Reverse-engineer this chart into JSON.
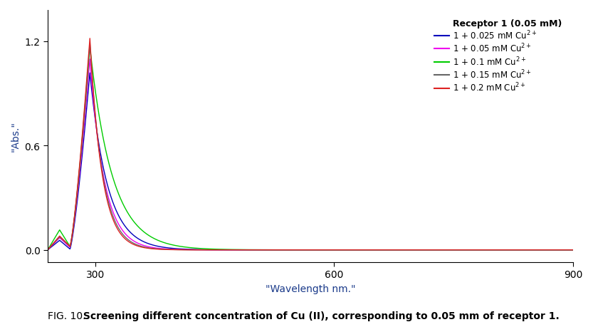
{
  "xlabel": "\"Wavelength nm.\"",
  "ylabel": "\"Abs.\"",
  "caption_prefix": "FIG. 10.",
  "caption_body": " Screening different concentration of Cu (II), corresponding to 0.05 mm of receptor 1.",
  "xlim": [
    240,
    900
  ],
  "ylim": [
    -0.07,
    1.38
  ],
  "xticks": [
    300,
    600,
    900
  ],
  "yticks": [
    0.0,
    0.6,
    1.2
  ],
  "legend_title": "Receptor 1 (0.05 mM)",
  "series": [
    {
      "label": "1 + 0.025 mM Cu$^{2+}$",
      "color": "#0000BB",
      "peak_amp": 1.02,
      "peak_wl": 293,
      "valley_wl": 268,
      "valley_amp": 0.005,
      "pre_amp": 0.055,
      "pre_wl": 255,
      "decay_rate": 22
    },
    {
      "label": "1 + 0.05 mM Cu$^{2+}$",
      "color": "#EE00EE",
      "peak_amp": 1.1,
      "peak_wl": 293,
      "valley_wl": 268,
      "valley_amp": 0.015,
      "pre_amp": 0.07,
      "pre_wl": 255,
      "decay_rate": 18
    },
    {
      "label": "1 + 0.1 mM Cu$^{2+}$",
      "color": "#00CC00",
      "peak_amp": 1.17,
      "peak_wl": 293,
      "valley_wl": 268,
      "valley_amp": 0.02,
      "pre_amp": 0.115,
      "pre_wl": 255,
      "decay_rate": 28
    },
    {
      "label": "1 + 0.15 mM Cu$^{2+}$",
      "color": "#666666",
      "peak_amp": 1.19,
      "peak_wl": 293,
      "valley_wl": 268,
      "valley_amp": 0.02,
      "pre_amp": 0.075,
      "pre_wl": 255,
      "decay_rate": 16
    },
    {
      "label": "1 + 0.2 mM Cu$^{2+}$",
      "color": "#DD2222",
      "peak_amp": 1.22,
      "peak_wl": 293,
      "valley_wl": 268,
      "valley_amp": 0.02,
      "pre_amp": 0.08,
      "pre_wl": 255,
      "decay_rate": 15
    }
  ],
  "background_color": "#FFFFFF",
  "legend_fontsize": 8.5,
  "axis_fontsize": 10,
  "tick_fontsize": 10,
  "caption_fontsize": 10
}
